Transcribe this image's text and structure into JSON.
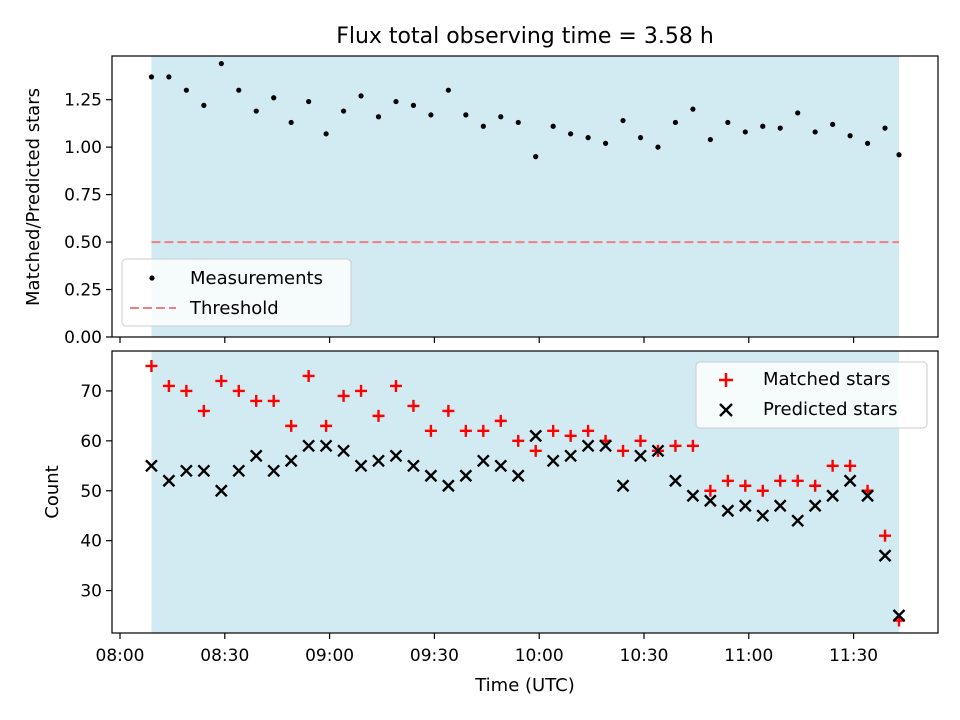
{
  "chart_data": [
    {
      "type": "scatter",
      "title": "Flux total observing time = 3.58 h",
      "ylabel": "Matched/Predicted stars",
      "xlabel": "",
      "ylim": [
        0,
        1.48
      ],
      "y_ticks": [
        "0.00",
        "0.25",
        "0.50",
        "0.75",
        "1.00",
        "1.25"
      ],
      "legend": {
        "placement": "lower-left",
        "entries": [
          "Measurements",
          "Threshold"
        ]
      },
      "threshold": 0.5,
      "shaded_span": [
        "08:09",
        "11:43"
      ],
      "series": [
        {
          "name": "Measurements",
          "x": [
            "08:09",
            "08:14",
            "08:19",
            "08:24",
            "08:29",
            "08:34",
            "08:39",
            "08:44",
            "08:49",
            "08:54",
            "08:59",
            "09:04",
            "09:09",
            "09:14",
            "09:19",
            "09:24",
            "09:29",
            "09:34",
            "09:39",
            "09:44",
            "09:49",
            "09:54",
            "09:59",
            "10:04",
            "10:09",
            "10:14",
            "10:19",
            "10:24",
            "10:29",
            "10:34",
            "10:39",
            "10:44",
            "10:49",
            "10:54",
            "10:59",
            "11:04",
            "11:09",
            "11:14",
            "11:19",
            "11:24",
            "11:29",
            "11:34",
            "11:39",
            "11:43"
          ],
          "values": [
            1.37,
            1.37,
            1.3,
            1.22,
            1.44,
            1.3,
            1.19,
            1.26,
            1.13,
            1.24,
            1.07,
            1.19,
            1.27,
            1.16,
            1.24,
            1.22,
            1.17,
            1.3,
            1.17,
            1.11,
            1.16,
            1.13,
            0.95,
            1.11,
            1.07,
            1.05,
            1.02,
            1.14,
            1.05,
            1.0,
            1.13,
            1.2,
            1.04,
            1.13,
            1.08,
            1.11,
            1.1,
            1.18,
            1.08,
            1.12,
            1.06,
            1.02,
            1.1,
            0.96
          ]
        }
      ]
    },
    {
      "type": "scatter",
      "title": "",
      "ylabel": "Count",
      "xlabel": "Time (UTC)",
      "ylim": [
        21.5,
        78
      ],
      "y_ticks": [
        "30",
        "40",
        "50",
        "60",
        "70"
      ],
      "x_ticks": [
        "08:00",
        "08:30",
        "09:00",
        "09:30",
        "10:00",
        "10:30",
        "11:00",
        "11:30"
      ],
      "legend": {
        "placement": "upper-right",
        "entries": [
          "Matched stars",
          "Predicted stars"
        ]
      },
      "shaded_span": [
        "08:09",
        "11:43"
      ],
      "series": [
        {
          "name": "Matched stars",
          "x": [
            "08:09",
            "08:14",
            "08:19",
            "08:24",
            "08:29",
            "08:34",
            "08:39",
            "08:44",
            "08:49",
            "08:54",
            "08:59",
            "09:04",
            "09:09",
            "09:14",
            "09:19",
            "09:24",
            "09:29",
            "09:34",
            "09:39",
            "09:44",
            "09:49",
            "09:54",
            "09:59",
            "10:04",
            "10:09",
            "10:14",
            "10:19",
            "10:24",
            "10:29",
            "10:34",
            "10:39",
            "10:44",
            "10:49",
            "10:54",
            "10:59",
            "11:04",
            "11:09",
            "11:14",
            "11:19",
            "11:24",
            "11:29",
            "11:34",
            "11:39",
            "11:43"
          ],
          "values": [
            75,
            71,
            70,
            66,
            72,
            70,
            68,
            68,
            63,
            73,
            63,
            69,
            70,
            65,
            71,
            67,
            62,
            66,
            62,
            62,
            64,
            60,
            58,
            62,
            61,
            62,
            60,
            58,
            60,
            58,
            59,
            59,
            50,
            52,
            51,
            50,
            52,
            52,
            51,
            55,
            55,
            50,
            41,
            24
          ]
        },
        {
          "name": "Predicted stars",
          "x": [
            "08:09",
            "08:14",
            "08:19",
            "08:24",
            "08:29",
            "08:34",
            "08:39",
            "08:44",
            "08:49",
            "08:54",
            "08:59",
            "09:04",
            "09:09",
            "09:14",
            "09:19",
            "09:24",
            "09:29",
            "09:34",
            "09:39",
            "09:44",
            "09:49",
            "09:54",
            "09:59",
            "10:04",
            "10:09",
            "10:14",
            "10:19",
            "10:24",
            "10:29",
            "10:34",
            "10:39",
            "10:44",
            "10:49",
            "10:54",
            "10:59",
            "11:04",
            "11:09",
            "11:14",
            "11:19",
            "11:24",
            "11:29",
            "11:34",
            "11:39",
            "11:43"
          ],
          "values": [
            55,
            52,
            54,
            54,
            50,
            54,
            57,
            54,
            56,
            59,
            59,
            58,
            55,
            56,
            57,
            55,
            53,
            51,
            53,
            56,
            55,
            53,
            61,
            56,
            57,
            59,
            59,
            51,
            57,
            58,
            52,
            49,
            48,
            46,
            47,
            45,
            47,
            44,
            47,
            49,
            52,
            49,
            37,
            25
          ]
        }
      ]
    }
  ],
  "colors": {
    "shade": "#add8e6",
    "threshold": "#f08080",
    "matched": "#ff0000",
    "predicted": "#000000",
    "measurements": "#000000"
  }
}
